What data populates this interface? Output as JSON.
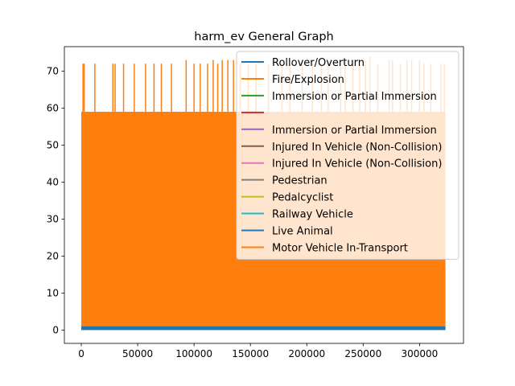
{
  "chart_data": {
    "type": "line",
    "title": "harm_ev General Graph",
    "xlabel": "",
    "ylabel": "",
    "xlim": [
      -15000,
      339000
    ],
    "ylim": [
      -3.6,
      76.6
    ],
    "x_data_range": [
      0,
      323000
    ],
    "xticks": [
      0,
      50000,
      100000,
      150000,
      200000,
      250000,
      300000
    ],
    "xtick_labels": [
      "0",
      "50000",
      "100000",
      "150000",
      "200000",
      "250000",
      "300000"
    ],
    "yticks": [
      0,
      10,
      20,
      30,
      40,
      50,
      60,
      70
    ],
    "ytick_labels": [
      "0",
      "10",
      "20",
      "30",
      "40",
      "50",
      "60",
      "70"
    ],
    "grid": false,
    "legend_location": "upper right",
    "legend": [
      {
        "label": "Rollover/Overturn",
        "color": "#1f77b4"
      },
      {
        "label": "Fire/Explosion",
        "color": "#ff7f0e"
      },
      {
        "label": "Immersion or Partial Immersion",
        "color": "#2ca02c"
      },
      {
        "label": "",
        "color": "#d62728"
      },
      {
        "label": "Immersion or Partial Immersion",
        "color": "#9467bd"
      },
      {
        "label": "Injured In Vehicle (Non-Collision)",
        "color": "#8c564b"
      },
      {
        "label": "Injured In Vehicle (Non-Collision)",
        "color": "#e377c2"
      },
      {
        "label": "Pedestrian",
        "color": "#7f7f7f"
      },
      {
        "label": "Pedalcyclist",
        "color": "#bcbd22"
      },
      {
        "label": "Railway Vehicle",
        "color": "#17becf"
      },
      {
        "label": "Live Animal",
        "color": "#1f77b4"
      },
      {
        "label": "Motor Vehicle In-Transport",
        "color": "#ff7f0e"
      }
    ],
    "series": [
      {
        "name": "Motor Vehicle In-Transport",
        "color": "#ff7f0e",
        "baseline": 0,
        "dense_band_max": 59,
        "spikes": [
          {
            "x": 1500,
            "y": 72
          },
          {
            "x": 2500,
            "y": 72
          },
          {
            "x": 12000,
            "y": 72
          },
          {
            "x": 28000,
            "y": 72
          },
          {
            "x": 30000,
            "y": 72
          },
          {
            "x": 37500,
            "y": 72
          },
          {
            "x": 47000,
            "y": 72
          },
          {
            "x": 57000,
            "y": 72
          },
          {
            "x": 64500,
            "y": 72
          },
          {
            "x": 71000,
            "y": 72
          },
          {
            "x": 80000,
            "y": 72
          },
          {
            "x": 93000,
            "y": 73
          },
          {
            "x": 100000,
            "y": 72
          },
          {
            "x": 105500,
            "y": 72
          },
          {
            "x": 112000,
            "y": 72
          },
          {
            "x": 117000,
            "y": 73
          },
          {
            "x": 121000,
            "y": 72
          },
          {
            "x": 125000,
            "y": 73
          },
          {
            "x": 130000,
            "y": 73
          },
          {
            "x": 135000,
            "y": 73
          },
          {
            "x": 141000,
            "y": 72
          },
          {
            "x": 148000,
            "y": 72
          },
          {
            "x": 155000,
            "y": 72
          },
          {
            "x": 166000,
            "y": 72
          },
          {
            "x": 178000,
            "y": 72
          },
          {
            "x": 185000,
            "y": 72
          },
          {
            "x": 196000,
            "y": 73
          },
          {
            "x": 205000,
            "y": 72
          },
          {
            "x": 213000,
            "y": 72
          },
          {
            "x": 219000,
            "y": 72
          },
          {
            "x": 230000,
            "y": 72
          },
          {
            "x": 234000,
            "y": 73
          },
          {
            "x": 241000,
            "y": 73
          },
          {
            "x": 247000,
            "y": 72
          },
          {
            "x": 252000,
            "y": 73
          },
          {
            "x": 256000,
            "y": 74
          },
          {
            "x": 263000,
            "y": 72
          },
          {
            "x": 273000,
            "y": 73
          },
          {
            "x": 276000,
            "y": 73
          },
          {
            "x": 283000,
            "y": 72
          },
          {
            "x": 289000,
            "y": 73
          },
          {
            "x": 293000,
            "y": 73
          },
          {
            "x": 300000,
            "y": 73
          },
          {
            "x": 304000,
            "y": 72
          },
          {
            "x": 310000,
            "y": 72
          },
          {
            "x": 319000,
            "y": 72
          },
          {
            "x": 322000,
            "y": 72
          }
        ]
      },
      {
        "name": "Live Animal",
        "color": "#1f77b4",
        "baseline": 0,
        "dense_band_max": 1
      }
    ]
  }
}
